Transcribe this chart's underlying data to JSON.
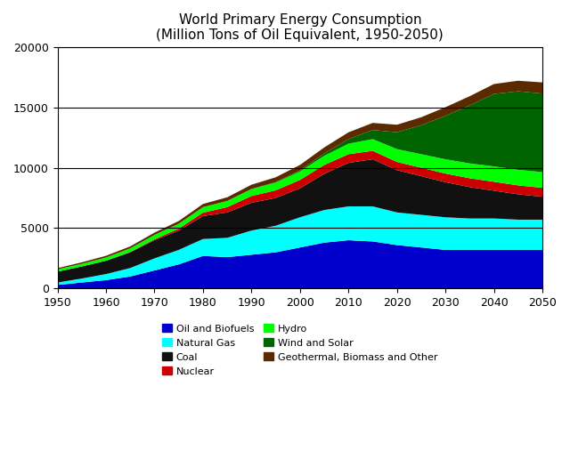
{
  "title": "World Primary Energy Consumption\n(Million Tons of Oil Equivalent, 1950-2050)",
  "years": [
    1950,
    1955,
    1960,
    1965,
    1970,
    1975,
    1980,
    1985,
    1990,
    1995,
    2000,
    2005,
    2010,
    2015,
    2020,
    2025,
    2030,
    2035,
    2040,
    2045,
    2050
  ],
  "series_order": [
    "Oil and Biofuels",
    "Natural Gas",
    "Coal",
    "Nuclear",
    "Hydro",
    "Wind and Solar",
    "Geothermal, Biomass and Other"
  ],
  "series": {
    "Oil and Biofuels": {
      "color": "#0000CC",
      "values": [
        300,
        500,
        700,
        1000,
        1500,
        2000,
        2700,
        2600,
        2800,
        3000,
        3400,
        3800,
        4000,
        3900,
        3600,
        3400,
        3200,
        3200,
        3200,
        3200,
        3200
      ]
    },
    "Natural Gas": {
      "color": "#00FFFF",
      "values": [
        200,
        330,
        500,
        700,
        1000,
        1200,
        1400,
        1600,
        2000,
        2200,
        2500,
        2700,
        2800,
        2900,
        2700,
        2700,
        2700,
        2600,
        2600,
        2500,
        2500
      ]
    },
    "Coal": {
      "color": "#111111",
      "values": [
        900,
        1000,
        1100,
        1300,
        1500,
        1600,
        1900,
        2100,
        2300,
        2300,
        2400,
        3000,
        3600,
        3900,
        3500,
        3200,
        2900,
        2600,
        2300,
        2100,
        1900
      ]
    },
    "Nuclear": {
      "color": "#CC0000",
      "values": [
        0,
        0,
        10,
        30,
        80,
        160,
        280,
        440,
        560,
        630,
        690,
        730,
        720,
        700,
        680,
        700,
        720,
        730,
        740,
        740,
        740
      ]
    },
    "Hydro": {
      "color": "#00FF00",
      "values": [
        190,
        220,
        260,
        300,
        360,
        410,
        460,
        510,
        570,
        640,
        700,
        760,
        870,
        970,
        1060,
        1120,
        1180,
        1230,
        1270,
        1290,
        1300
      ]
    },
    "Wind and Solar": {
      "color": "#006400",
      "values": [
        0,
        0,
        0,
        0,
        0,
        0,
        0,
        5,
        15,
        40,
        90,
        190,
        380,
        750,
        1400,
        2400,
        3600,
        4800,
        6000,
        6500,
        6500
      ]
    },
    "Geothermal, Biomass and Other": {
      "color": "#5B2A00",
      "values": [
        100,
        120,
        140,
        160,
        190,
        220,
        260,
        300,
        350,
        400,
        450,
        500,
        560,
        590,
        620,
        660,
        710,
        760,
        820,
        870,
        920
      ]
    }
  },
  "ylim": [
    0,
    20000
  ],
  "xlim": [
    1950,
    2050
  ],
  "yticks": [
    0,
    5000,
    10000,
    15000,
    20000
  ],
  "xticks": [
    1950,
    1960,
    1970,
    1980,
    1990,
    2000,
    2010,
    2020,
    2030,
    2040,
    2050
  ],
  "legend_left": [
    "Oil and Biofuels",
    "Coal",
    "Hydro",
    "Geothermal, Biomass and Other"
  ],
  "legend_right": [
    "Natural Gas",
    "Nuclear",
    "Wind and Solar"
  ],
  "background_color": "#ffffff",
  "grid_color": "#000000"
}
